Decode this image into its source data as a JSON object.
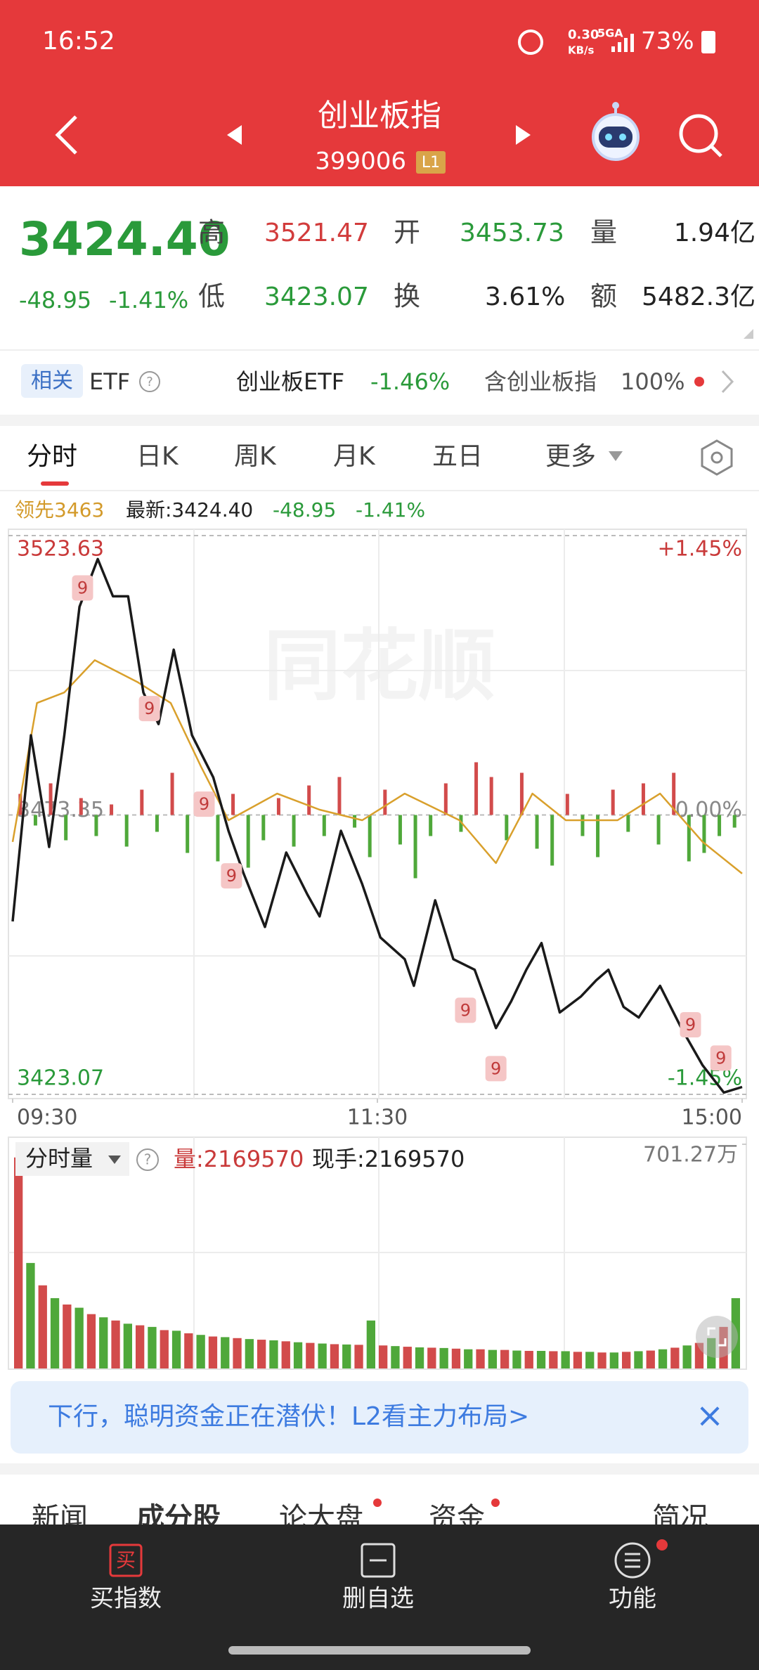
{
  "status": {
    "time": "16:52",
    "speed": "0.30",
    "speed_unit": "KB/s",
    "network": "5GA",
    "battery": "73%"
  },
  "header": {
    "title": "创业板指",
    "code": "399006",
    "badge": "L1"
  },
  "quote": {
    "price": "3424.40",
    "change": "-48.95",
    "change_pct": "-1.41%",
    "stats": [
      {
        "label": "高",
        "value": "3521.47"
      },
      {
        "label": "开",
        "value": "3453.73"
      },
      {
        "label": "量",
        "value": "1.94亿"
      },
      {
        "label": "低",
        "value": "3423.07"
      },
      {
        "label": "换",
        "value": "3.61%"
      },
      {
        "label": "额",
        "value": "5482.3亿"
      }
    ]
  },
  "etf": {
    "tag": "相关",
    "name": "ETF",
    "help": "?",
    "fund": "创业板ETF",
    "fund_change": "-1.46%",
    "holds": "含创业板指",
    "holds_pct": "100%"
  },
  "tabs": [
    "分时",
    "日K",
    "周K",
    "月K",
    "五日",
    "更多"
  ],
  "info": {
    "lead": "领先3463",
    "latest": "最新:3424.40",
    "change": "-48.95",
    "pct": "-1.41%"
  },
  "watermark": "同花顺",
  "chart_data": {
    "type": "line",
    "xlim": [
      0,
      240
    ],
    "xticks": [
      {
        "value": 0,
        "label": "09:30"
      },
      {
        "value": 120,
        "label": "11:30"
      },
      {
        "value": 240,
        "label": "15:00"
      }
    ],
    "ylim": [
      3423.07,
      3523.63
    ],
    "yticks": [
      3423.07,
      3473.35,
      3523.63
    ],
    "y2lim": [
      -1.45,
      1.45
    ],
    "y2ticks": [
      {
        "value": -1.45,
        "label": "-1.45%"
      },
      {
        "value": 0,
        "label": "0.00%"
      },
      {
        "value": 1.45,
        "label": "+1.45%"
      }
    ],
    "series": [
      {
        "color": "#1a1a1a",
        "x": [
          0,
          6,
          12,
          17,
          22,
          28,
          33,
          38,
          43,
          48,
          53,
          59,
          66,
          71,
          76,
          83,
          90,
          97,
          101,
          108,
          115,
          121,
          129,
          132,
          139,
          145,
          152,
          159,
          164,
          169,
          174,
          180,
          187,
          192,
          196,
          201,
          206,
          213,
          220,
          227,
          234,
          240
        ],
        "values": [
          3454.2,
          3487.7,
          3467.6,
          3487.7,
          3510.8,
          3519.4,
          3512.7,
          3512.7,
          3495.4,
          3489.7,
          3503.1,
          3487.7,
          3480.1,
          3470.5,
          3462.8,
          3453.2,
          3466.6,
          3459.0,
          3455.1,
          3470.5,
          3460.9,
          3451.3,
          3447.4,
          3442.6,
          3458.0,
          3447.4,
          3445.5,
          3435.0,
          3439.8,
          3445.5,
          3450.3,
          3437.8,
          3440.7,
          3443.6,
          3445.5,
          3438.8,
          3436.9,
          3442.6,
          3435.0,
          3428.3,
          3423.4,
          3424.4
        ]
      },
      {
        "color": "#d9a02c",
        "x": [
          0,
          8,
          17,
          27,
          41,
          52,
          62,
          71,
          87,
          101,
          115,
          129,
          147,
          159,
          171,
          182,
          199,
          213,
          227,
          240
        ],
        "values": [
          3468.5,
          3493.5,
          3495.4,
          3501.2,
          3497.3,
          3493.5,
          3482.0,
          3472.4,
          3477.2,
          3474.3,
          3472.4,
          3477.2,
          3472.4,
          3464.7,
          3477.2,
          3472.4,
          3472.4,
          3477.2,
          3468.5,
          3462.8
        ]
      }
    ],
    "strength": [
      10,
      -5,
      15,
      -12,
      8,
      -10,
      5,
      -15,
      12,
      -8,
      20,
      -18,
      6,
      -22,
      10,
      -25,
      -12,
      8,
      -15,
      14,
      -10,
      18,
      -6,
      -20,
      12,
      -14,
      -30,
      -10,
      15,
      -8,
      25,
      18,
      -12,
      20,
      -16,
      -24,
      10,
      -10,
      -20,
      12,
      -8,
      15,
      -14,
      20,
      -22,
      -18,
      -10,
      -6
    ],
    "annotations": [
      {
        "text": "9",
        "x": 23,
        "y": 3514.2
      },
      {
        "text": "9",
        "x": 45,
        "y": 3492.5
      },
      {
        "text": "9",
        "x": 63,
        "y": 3475.3
      },
      {
        "text": "9",
        "x": 72,
        "y": 3462.4
      },
      {
        "text": "9",
        "x": 149,
        "y": 3438.2
      },
      {
        "text": "9",
        "x": 159,
        "y": 3427.7
      },
      {
        "text": "9",
        "x": 223,
        "y": 3435.6
      },
      {
        "text": "9",
        "x": 233,
        "y": 3429.6
      }
    ]
  },
  "volume": {
    "label": "分时量",
    "help": "?",
    "vol": "量:2169570",
    "hand": "现手:2169570",
    "ylim": [
      0,
      701.27
    ],
    "max_label": "701.27万",
    "values": [
      660,
      330,
      260,
      220,
      200,
      190,
      170,
      160,
      150,
      140,
      135,
      130,
      120,
      118,
      110,
      105,
      100,
      98,
      95,
      92,
      90,
      88,
      85,
      82,
      80,
      78,
      76,
      75,
      74,
      150,
      72,
      70,
      68,
      66,
      65,
      64,
      62,
      60,
      60,
      58,
      58,
      56,
      55,
      55,
      54,
      54,
      52,
      52,
      50,
      50,
      52,
      54,
      56,
      60,
      65,
      72,
      80,
      95,
      130,
      220
    ]
  },
  "banner": {
    "text": "下行，聪明资金正在潜伏！L2看主力布局>",
    "close": "×"
  },
  "sections": [
    "新闻",
    "成分股",
    "论大盘",
    "资金",
    "简况"
  ],
  "nav": {
    "buy_icon": "买",
    "items": [
      "买指数",
      "删自选",
      "功能"
    ]
  }
}
